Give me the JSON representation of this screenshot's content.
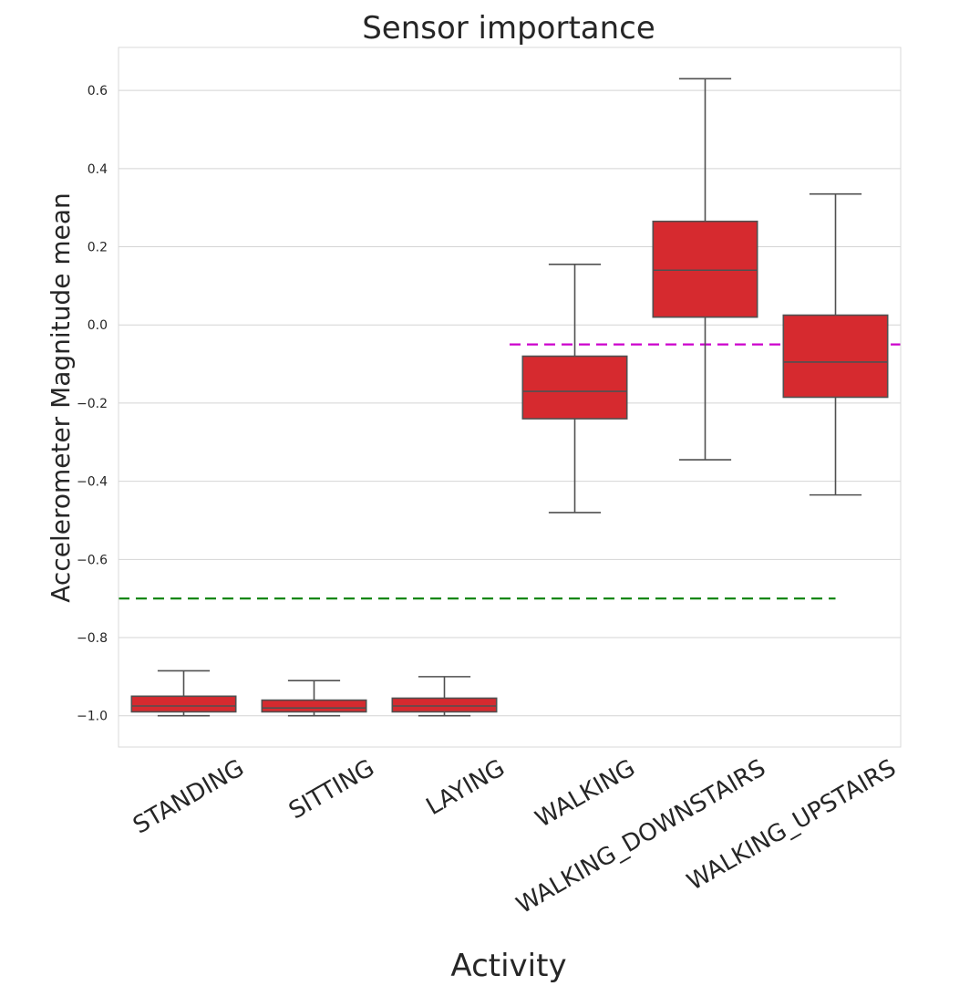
{
  "chart_data": {
    "type": "box",
    "title": "Sensor importance",
    "xlabel": "Activity",
    "ylabel": "Accelerometer Magnitude mean",
    "ylim": [
      -1.08,
      0.71
    ],
    "yticks": [
      0.6,
      0.4,
      0.2,
      0.0,
      -0.2,
      -0.4,
      -0.6,
      -0.8,
      -1.0
    ],
    "ytick_labels": [
      "0.6",
      "0.4",
      "0.2",
      "0.0",
      "−0.2",
      "−0.4",
      "−0.6",
      "−0.8",
      "−1.0"
    ],
    "grid": "horizontal",
    "categories": [
      "STANDING",
      "SITTING",
      "LAYING",
      "WALKING",
      "WALKING_DOWNSTAIRS",
      "WALKING_UPSTAIRS"
    ],
    "boxes": [
      {
        "category": "STANDING",
        "whisker_low": -1.0,
        "q1": -0.99,
        "median": -0.975,
        "q3": -0.95,
        "whisker_high": -0.885
      },
      {
        "category": "SITTING",
        "whisker_low": -1.0,
        "q1": -0.99,
        "median": -0.98,
        "q3": -0.96,
        "whisker_high": -0.91
      },
      {
        "category": "LAYING",
        "whisker_low": -1.0,
        "q1": -0.99,
        "median": -0.975,
        "q3": -0.955,
        "whisker_high": -0.9
      },
      {
        "category": "WALKING",
        "whisker_low": -0.48,
        "q1": -0.24,
        "median": -0.17,
        "q3": -0.08,
        "whisker_high": 0.155
      },
      {
        "category": "WALKING_DOWNSTAIRS",
        "whisker_low": -0.345,
        "q1": 0.02,
        "median": 0.14,
        "q3": 0.265,
        "whisker_high": 0.63
      },
      {
        "category": "WALKING_UPSTAIRS",
        "whisker_low": -0.435,
        "q1": -0.185,
        "median": -0.095,
        "q3": 0.025,
        "whisker_high": 0.335
      }
    ],
    "reference_lines": [
      {
        "y": -0.05,
        "x_from_category": 2.5,
        "x_to_category": 5.5,
        "color": "#cc00cc",
        "style": "dashed"
      },
      {
        "y": -0.7,
        "x_from_category": -0.5,
        "x_to_category": 5.0,
        "color": "#008000",
        "style": "dashed"
      }
    ],
    "box_color": "#d62a2f",
    "line_color": "#505050",
    "grid_color": "#d4d4d4"
  }
}
